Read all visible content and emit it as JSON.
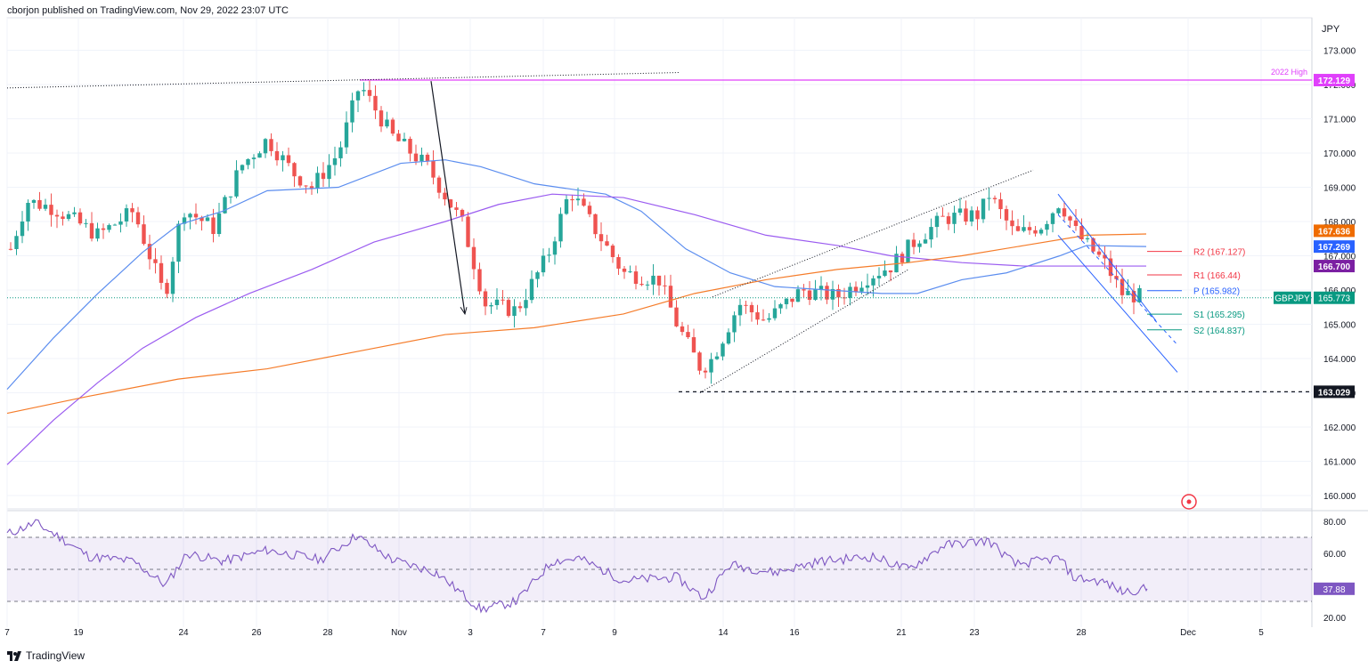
{
  "header": {
    "published": "cborjon published on TradingView.com, Nov 29, 2022 23:07 UTC"
  },
  "footer": {
    "brand": "TradingView",
    "logo_icon": "tradingview-logo-icon"
  },
  "currency": "JPY",
  "chart_data": [
    {
      "type": "candlestick",
      "symbol": "GBPJPY",
      "y_ticks": [
        "173.000",
        "172.000",
        "171.000",
        "170.000",
        "169.000",
        "168.000",
        "167.000",
        "166.000",
        "165.000",
        "164.000",
        "163.000",
        "162.000",
        "161.000",
        "160.000"
      ],
      "ylim": [
        159.5,
        173.5
      ],
      "x_ticks": [
        "7",
        "19",
        "24",
        "26",
        "28",
        "Nov",
        "3",
        "7",
        "9",
        "14",
        "16",
        "21",
        "23",
        "28",
        "Dec",
        "5"
      ],
      "price_labels": [
        {
          "name": "2022 high",
          "text": "172.129",
          "value": 172.129,
          "bg": "#e040fb",
          "fg": "#ffffff"
        },
        {
          "name": "sma-orange",
          "text": "167.636",
          "value": 167.636,
          "bg": "#ef6c00",
          "fg": "#ffffff"
        },
        {
          "name": "sma-blue",
          "text": "167.269",
          "value": 167.269,
          "bg": "#2962ff",
          "fg": "#ffffff"
        },
        {
          "name": "sma-purple",
          "text": "166.700",
          "value": 166.7,
          "bg": "#7b1fa2",
          "fg": "#ffffff"
        },
        {
          "name": "low",
          "text": "163.029",
          "value": 163.029,
          "bg": "#131722",
          "fg": "#ffffff"
        }
      ],
      "current": {
        "symbol": "GBPJPY",
        "text": "165.773",
        "value": 165.773,
        "color": "#089981"
      },
      "annotation_2022_high": "2022 High",
      "pivots": [
        {
          "label": "R2 (167.127)",
          "value": 167.127,
          "color": "#f23645"
        },
        {
          "label": "R1 (166.44)",
          "value": 166.44,
          "color": "#f23645"
        },
        {
          "label": "P (165.982)",
          "value": 165.982,
          "color": "#2962ff"
        },
        {
          "label": "S1 (165.295)",
          "value": 165.295,
          "color": "#089981"
        },
        {
          "label": "S2 (164.837)",
          "value": 164.837,
          "color": "#089981"
        }
      ],
      "colors": {
        "up": "#26a69a",
        "down": "#ef5350",
        "sma_blue": "#5b8def",
        "sma_purple": "#9b5cf0",
        "sma_orange": "#f57c2a",
        "high_line": "#e040fb"
      }
    },
    {
      "type": "line",
      "name": "RSI",
      "y_ticks": [
        "80.00",
        "60.00",
        "40.00",
        "20.00"
      ],
      "ylim": [
        15,
        85
      ],
      "band": [
        30,
        70
      ],
      "current": {
        "text": "37.88",
        "value": 37.88,
        "color": "#7e57c2"
      }
    }
  ]
}
